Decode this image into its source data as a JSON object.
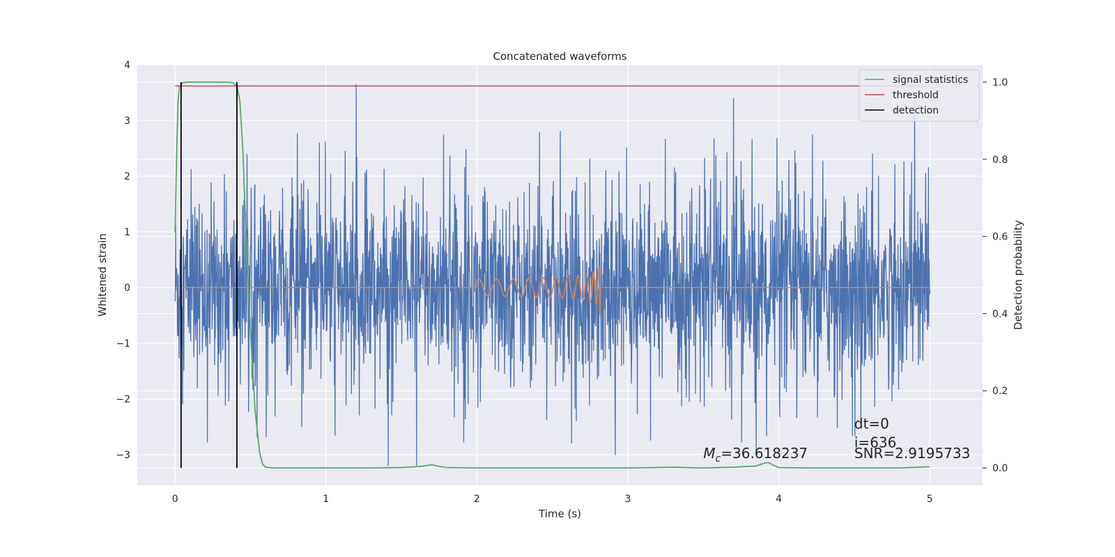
{
  "chart_data": {
    "type": "line",
    "title": "Concatenated waveforms",
    "xlabel": "Time (s)",
    "ylabel_left": "Whitened strain",
    "ylabel_right": "Detection probability",
    "xlim": [
      -0.25,
      5.35
    ],
    "ylim_left": [
      -3.55,
      4.0
    ],
    "ylim_right": [
      -0.045,
      1.045
    ],
    "x_ticks": [
      0,
      1,
      2,
      3,
      4,
      5
    ],
    "x_tick_labels": [
      "0",
      "1",
      "2",
      "3",
      "4",
      "5"
    ],
    "y_left_ticks": [
      -3,
      -2,
      -1,
      0,
      1,
      2,
      3,
      4
    ],
    "y_left_tick_labels": [
      "−3",
      "−2",
      "−1",
      "0",
      "1",
      "2",
      "3",
      "4"
    ],
    "y_right_ticks": [
      0.0,
      0.2,
      0.4,
      0.6,
      0.8,
      1.0
    ],
    "y_right_tick_labels": [
      "0.0",
      "0.2",
      "0.4",
      "0.6",
      "0.8",
      "1.0"
    ],
    "grid": true,
    "legend_position": "top-right",
    "series": [
      {
        "name": "whitened noise",
        "axis": "left",
        "color": "#4c72b0",
        "x_range": [
          0,
          5
        ],
        "noise_envelope": {
          "typical_min": -2.0,
          "typical_max": 2.0,
          "extreme_min": -3.2,
          "extreme_max": 3.65
        },
        "spikes": [
          {
            "x": 1.2,
            "y": 3.65
          },
          {
            "x": 3.7,
            "y": 3.4
          },
          {
            "x": 4.9,
            "y": 3.4
          },
          {
            "x": 1.6,
            "y": -3.2
          },
          {
            "x": 3.85,
            "y": -3.0
          }
        ]
      },
      {
        "name": "injected waveform",
        "axis": "left",
        "color": "#dd8452",
        "x_range": [
          0,
          5
        ],
        "chirp_start": 2.0,
        "merger_time": 2.82,
        "peak_amplitude": 0.65
      },
      {
        "name": "signal statistics",
        "axis": "right",
        "color": "#55a868",
        "x": [
          0,
          0.01,
          0.02,
          0.03,
          0.05,
          0.08,
          0.12,
          0.2,
          0.3,
          0.38,
          0.41,
          0.43,
          0.45,
          0.47,
          0.5,
          0.53,
          0.56,
          0.58,
          0.6,
          0.65,
          0.8,
          1.0,
          1.3,
          1.5,
          1.6,
          1.65,
          1.7,
          1.75,
          1.8,
          2.0,
          2.5,
          3.0,
          3.3,
          3.5,
          3.7,
          3.85,
          3.9,
          3.93,
          3.97,
          4.0,
          4.2,
          4.5,
          4.8,
          5.0
        ],
        "y": [
          0.61,
          0.8,
          0.95,
          0.99,
          0.998,
          1.0,
          1.0,
          1.0,
          1.0,
          0.999,
          0.99,
          0.95,
          0.82,
          0.6,
          0.35,
          0.15,
          0.04,
          0.01,
          0.002,
          0.0,
          0.0,
          0.0,
          0.0,
          0.001,
          0.003,
          0.005,
          0.008,
          0.004,
          0.001,
          0.0,
          0.0,
          0.0,
          0.002,
          0.0,
          0.002,
          0.005,
          0.012,
          0.014,
          0.006,
          0.001,
          0.0,
          0.0,
          0.0,
          0.003
        ]
      },
      {
        "name": "threshold",
        "axis": "right",
        "color": "#c44e52",
        "x": [
          0,
          5
        ],
        "y": [
          0.99,
          0.99
        ]
      },
      {
        "name": "detection",
        "axis": "right",
        "color": "#000000",
        "vlines": [
          0.04,
          0.41
        ],
        "y_range": [
          0.0,
          1.0
        ]
      }
    ],
    "legend": [
      {
        "label": "signal statistics",
        "color": "#55a868"
      },
      {
        "label": "threshold",
        "color": "#c44e52"
      },
      {
        "label": "detection",
        "color": "#000000"
      }
    ],
    "annotations": {
      "mc_symbol": "M",
      "mc_subscript": "c",
      "mc_value": "=36.618237",
      "dt": "dt=0",
      "i": "i=636",
      "snr": "SNR=2.9195733"
    }
  }
}
